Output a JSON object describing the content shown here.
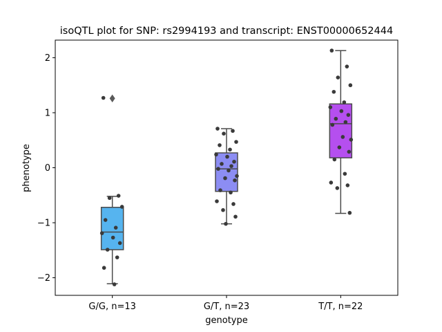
{
  "chart_data": {
    "type": "box",
    "title": "isoQTL plot for SNP: rs2994193 and transcript: ENST00000652444",
    "xlabel": "genotype",
    "ylabel": "phenotype",
    "categories": [
      "G/G, n=13",
      "G/T, n=23",
      "T/T, n=22"
    ],
    "ylim": [
      -2.32,
      2.32
    ],
    "yticks": [
      -2,
      -1,
      0,
      1,
      2
    ],
    "ytick_labels": [
      "−2",
      "−1",
      "0",
      "1",
      "2"
    ],
    "box_colors": [
      "#56b4ef",
      "#8c8df3",
      "#b54fef"
    ],
    "point_color": "#3a3a3a",
    "boxes": [
      {
        "q1": -1.49,
        "median": -1.17,
        "q3": -0.72,
        "whisker_low": -2.11,
        "whisker_high": -0.52,
        "outliers": [
          1.26
        ]
      },
      {
        "q1": -0.43,
        "median": -0.02,
        "q3": 0.27,
        "whisker_low": -1.02,
        "whisker_high": 0.71,
        "outliers": []
      },
      {
        "q1": 0.18,
        "median": 0.8,
        "q3": 1.16,
        "whisker_low": -0.83,
        "whisker_high": 2.13,
        "outliers": []
      }
    ],
    "points": [
      [
        1.27,
        -0.51,
        -0.55,
        -0.71,
        -0.95,
        -1.09,
        -1.19,
        -1.27,
        -1.37,
        -1.49,
        -1.63,
        -1.82,
        -2.12
      ],
      [
        0.71,
        0.67,
        0.62,
        0.47,
        0.41,
        0.33,
        0.24,
        0.2,
        0.11,
        0.07,
        0.03,
        -0.02,
        -0.05,
        -0.15,
        -0.19,
        -0.23,
        -0.41,
        -0.45,
        -0.61,
        -0.66,
        -0.77,
        -0.89,
        -1.02
      ],
      [
        2.13,
        1.84,
        1.64,
        1.5,
        1.38,
        1.19,
        1.1,
        1.03,
        0.96,
        0.89,
        0.83,
        0.78,
        0.56,
        0.51,
        0.37,
        0.29,
        0.15,
        -0.11,
        -0.27,
        -0.32,
        -0.37,
        -0.82
      ]
    ]
  }
}
